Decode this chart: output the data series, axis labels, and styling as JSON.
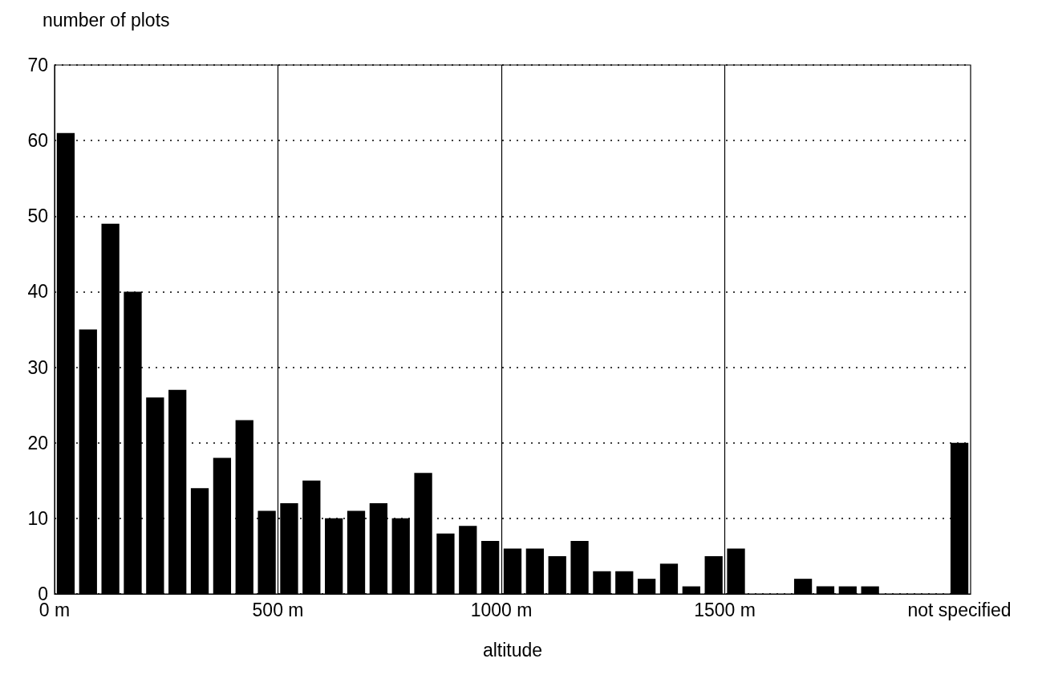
{
  "chart_data": {
    "type": "bar",
    "title": "number of plots",
    "xlabel": "altitude",
    "x": [
      25,
      75,
      125,
      175,
      225,
      275,
      325,
      375,
      425,
      475,
      525,
      575,
      625,
      675,
      725,
      775,
      825,
      875,
      925,
      975,
      1025,
      1075,
      1125,
      1175,
      1225,
      1275,
      1325,
      1375,
      1425,
      1475,
      1525,
      1575,
      1625,
      1675,
      1725,
      1775,
      1825,
      1875,
      1925,
      1975,
      2025
    ],
    "values": [
      61,
      35,
      49,
      40,
      26,
      27,
      14,
      18,
      23,
      11,
      12,
      15,
      10,
      11,
      12,
      10,
      16,
      8,
      9,
      7,
      6,
      6,
      5,
      7,
      3,
      3,
      2,
      4,
      1,
      5,
      6,
      0,
      0,
      2,
      1,
      1,
      1,
      0,
      0,
      0,
      20
    ],
    "color": "#000000",
    "xlim": [
      0,
      2050
    ],
    "xticks": [
      {
        "value": 0,
        "label": "0 m"
      },
      {
        "value": 500,
        "label": "500 m"
      },
      {
        "value": 1000,
        "label": "1000 m"
      },
      {
        "value": 1500,
        "label": "1500 m"
      },
      {
        "value": 2025,
        "label": "not specified"
      }
    ],
    "ylim": [
      0,
      70
    ],
    "yticks": [
      0,
      10,
      20,
      30,
      40,
      50,
      60,
      70
    ],
    "grid": "y",
    "ref_lines": [
      {
        "axis": "x",
        "value": 500,
        "color": "#000000"
      },
      {
        "axis": "x",
        "value": 1000,
        "color": "#000000"
      },
      {
        "axis": "x",
        "value": 1500,
        "color": "#000000"
      }
    ]
  }
}
